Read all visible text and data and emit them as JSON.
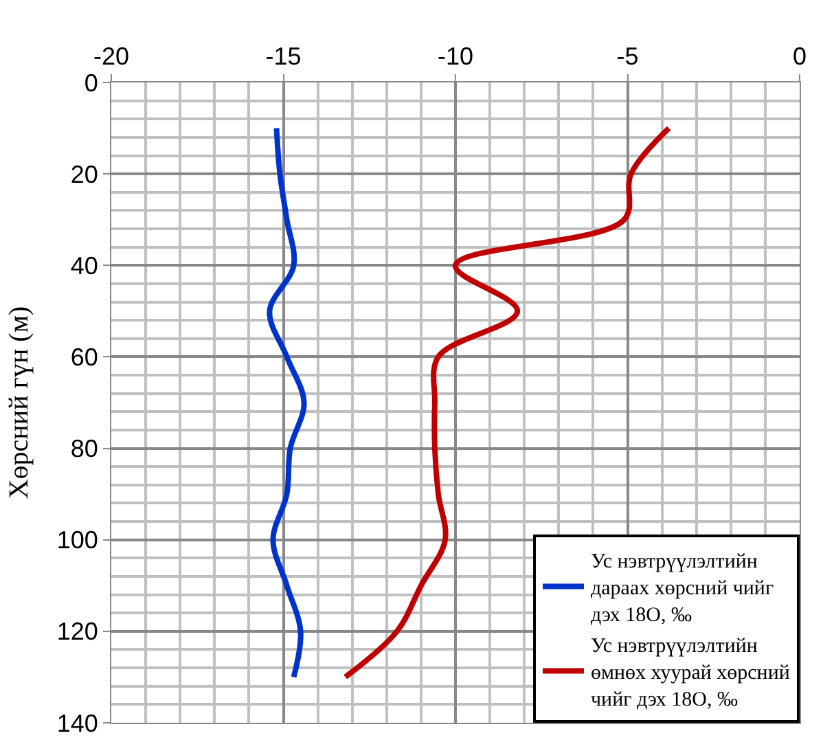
{
  "chart_data": {
    "type": "line",
    "ylabel": "Хөрсний гүн (м)",
    "xlim": [
      -20,
      0
    ],
    "xticks": [
      -20,
      -15,
      -10,
      -5,
      0
    ],
    "ylim": [
      140,
      0
    ],
    "yticks": [
      0,
      20,
      40,
      60,
      80,
      100,
      120,
      140
    ],
    "grid": true,
    "legend": "bottom right",
    "marker": "none",
    "line_style": "solid",
    "series": [
      {
        "name": "Ус нэвтрүүлэлтийн дараах хөрсний чийг дэх 18O, ‰",
        "color": "#0033cc",
        "x": [
          -15.2,
          -15.1,
          -14.9,
          -14.7,
          -15.4,
          -14.9,
          -14.4,
          -14.8,
          -14.9,
          -15.3,
          -14.9,
          -14.5,
          -14.7
        ],
        "values": [
          10,
          20,
          30,
          40,
          50,
          60,
          70,
          80,
          90,
          100,
          110,
          120,
          130
        ]
      },
      {
        "name": "Ус нэвтрүүлэлтийн өмнөх хуурай хөрсний чийг дэх 18O, ‰",
        "color": "#c00000",
        "x": [
          -3.8,
          -4.9,
          -5.1,
          -10.0,
          -8.2,
          -10.5,
          -10.6,
          -10.6,
          -10.5,
          -10.3,
          -11.0,
          -11.7,
          -13.2
        ],
        "values": [
          10,
          20,
          30,
          40,
          50,
          60,
          70,
          80,
          90,
          100,
          110,
          120,
          130
        ]
      }
    ]
  }
}
